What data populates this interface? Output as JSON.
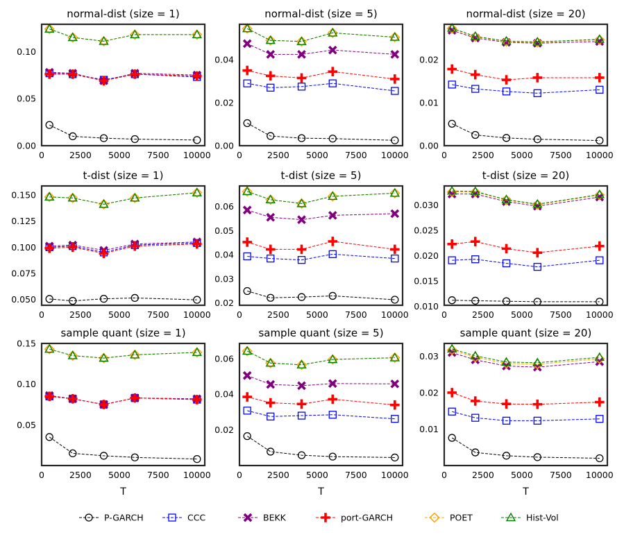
{
  "figure": {
    "xlabel": "T",
    "legend": [
      {
        "name": "P-GARCH",
        "color": "#000000",
        "marker": "circle"
      },
      {
        "name": "CCC",
        "color": "#0000ff",
        "marker": "square"
      },
      {
        "name": "BEKK",
        "color": "#800080",
        "marker": "x-cross"
      },
      {
        "name": "port-GARCH",
        "color": "#ff0000",
        "marker": "plus-cross"
      },
      {
        "name": "POET",
        "color": "#ffa500",
        "marker": "diamond"
      },
      {
        "name": "Hist-Vol",
        "color": "#008000",
        "marker": "triangle"
      }
    ]
  },
  "chart_data": [
    {
      "type": "line",
      "title": "normal-dist (size = 1)",
      "xlabel": "",
      "ylabel": "",
      "x": [
        500,
        2000,
        4000,
        6000,
        10000
      ],
      "xlim": [
        0,
        10500
      ],
      "xticks": [
        "0",
        "2500",
        "5000",
        "7500",
        "10000"
      ],
      "xtick_values": [
        0,
        2500,
        5000,
        7500,
        10000
      ],
      "ylim": [
        0,
        0.129
      ],
      "yticks": [
        "0.00",
        "0.05",
        "0.10"
      ],
      "ytick_values": [
        0,
        0.05,
        0.1
      ],
      "series": [
        {
          "name": "P-GARCH",
          "values": [
            0.022,
            0.01,
            0.008,
            0.007,
            0.006
          ]
        },
        {
          "name": "CCC",
          "values": [
            0.077,
            0.076,
            0.07,
            0.076,
            0.073
          ]
        },
        {
          "name": "BEKK",
          "values": [
            0.078,
            0.077,
            0.069,
            0.077,
            0.075
          ]
        },
        {
          "name": "port-GARCH",
          "values": [
            0.076,
            0.076,
            0.069,
            0.076,
            0.074
          ]
        },
        {
          "name": "POET",
          "values": [
            0.124,
            0.115,
            0.111,
            0.118,
            0.118
          ]
        },
        {
          "name": "Hist-Vol",
          "values": [
            0.124,
            0.115,
            0.111,
            0.118,
            0.118
          ]
        }
      ]
    },
    {
      "type": "line",
      "title": "normal-dist (size = 5)",
      "xlabel": "",
      "ylabel": "",
      "x": [
        500,
        2000,
        4000,
        6000,
        10000
      ],
      "xlim": [
        0,
        10500
      ],
      "xticks": [
        "0",
        "2500",
        "5000",
        "7500",
        "10000"
      ],
      "xtick_values": [
        0,
        2500,
        5000,
        7500,
        10000
      ],
      "ylim": [
        0,
        0.0565
      ],
      "yticks": [
        "0.00",
        "0.02",
        "0.04"
      ],
      "ytick_values": [
        0,
        0.02,
        0.04
      ],
      "series": [
        {
          "name": "P-GARCH",
          "values": [
            0.0105,
            0.0045,
            0.0035,
            0.0033,
            0.0025
          ]
        },
        {
          "name": "CCC",
          "values": [
            0.029,
            0.027,
            0.0275,
            0.029,
            0.0255
          ]
        },
        {
          "name": "BEKK",
          "values": [
            0.0475,
            0.0425,
            0.0425,
            0.0445,
            0.0425
          ]
        },
        {
          "name": "port-GARCH",
          "values": [
            0.035,
            0.0325,
            0.0315,
            0.0345,
            0.031
          ]
        },
        {
          "name": "POET",
          "values": [
            0.0545,
            0.049,
            0.0485,
            0.0525,
            0.0505
          ]
        },
        {
          "name": "Hist-Vol",
          "values": [
            0.0545,
            0.049,
            0.0485,
            0.0525,
            0.0505
          ]
        }
      ]
    },
    {
      "type": "line",
      "title": "normal-dist (size = 20)",
      "xlabel": "",
      "ylabel": "",
      "x": [
        500,
        2000,
        4000,
        6000,
        10000
      ],
      "xlim": [
        0,
        10500
      ],
      "xticks": [
        "0",
        "2500",
        "5000",
        "7500",
        "10000"
      ],
      "xtick_values": [
        0,
        2500,
        5000,
        7500,
        10000
      ],
      "ylim": [
        0,
        0.0282
      ],
      "yticks": [
        "0.00",
        "0.01",
        "0.02"
      ],
      "ytick_values": [
        0,
        0.01,
        0.02
      ],
      "series": [
        {
          "name": "P-GARCH",
          "values": [
            0.0051,
            0.0025,
            0.0018,
            0.0015,
            0.0012
          ]
        },
        {
          "name": "CCC",
          "values": [
            0.0142,
            0.0132,
            0.0126,
            0.0122,
            0.013
          ]
        },
        {
          "name": "BEKK",
          "values": [
            0.0268,
            0.025,
            0.024,
            0.0238,
            0.0242
          ]
        },
        {
          "name": "port-GARCH",
          "values": [
            0.0178,
            0.0165,
            0.0153,
            0.0158,
            0.0158
          ]
        },
        {
          "name": "POET",
          "values": [
            0.0272,
            0.0253,
            0.0242,
            0.024,
            0.0246
          ]
        },
        {
          "name": "Hist-Vol",
          "values": [
            0.0273,
            0.0254,
            0.0243,
            0.0241,
            0.0247
          ]
        }
      ]
    },
    {
      "type": "line",
      "title": "t-dist (size = 1)",
      "xlabel": "",
      "ylabel": "",
      "x": [
        500,
        2000,
        4000,
        6000,
        10000
      ],
      "xlim": [
        0,
        10500
      ],
      "xticks": [
        "0",
        "2500",
        "5000",
        "7500",
        "10000"
      ],
      "xtick_values": [
        0,
        2500,
        5000,
        7500,
        10000
      ],
      "ylim": [
        0.0445,
        0.1585
      ],
      "yticks": [
        "0.050",
        "0.075",
        "0.100",
        "0.125",
        "0.150"
      ],
      "ytick_values": [
        0.05,
        0.075,
        0.1,
        0.125,
        0.15
      ],
      "series": [
        {
          "name": "P-GARCH",
          "values": [
            0.0505,
            0.0487,
            0.0507,
            0.0515,
            0.0497
          ]
        },
        {
          "name": "CCC",
          "values": [
            0.1,
            0.101,
            0.095,
            0.102,
            0.104
          ]
        },
        {
          "name": "BEKK",
          "values": [
            0.101,
            0.102,
            0.097,
            0.103,
            0.105
          ]
        },
        {
          "name": "port-GARCH",
          "values": [
            0.099,
            0.1,
            0.094,
            0.101,
            0.103
          ]
        },
        {
          "name": "POET",
          "values": [
            0.148,
            0.147,
            0.141,
            0.147,
            0.152
          ]
        },
        {
          "name": "Hist-Vol",
          "values": [
            0.148,
            0.147,
            0.141,
            0.147,
            0.152
          ]
        }
      ]
    },
    {
      "type": "line",
      "title": "t-dist (size = 5)",
      "xlabel": "",
      "ylabel": "",
      "x": [
        500,
        2000,
        4000,
        6000,
        10000
      ],
      "xlim": [
        0,
        10500
      ],
      "xticks": [
        "0",
        "2500",
        "5000",
        "7500",
        "10000"
      ],
      "xtick_values": [
        0,
        2500,
        5000,
        7500,
        10000
      ],
      "ylim": [
        0.019,
        0.0685
      ],
      "yticks": [
        "0.02",
        "0.03",
        "0.04",
        "0.05",
        "0.06"
      ],
      "ytick_values": [
        0.02,
        0.03,
        0.04,
        0.05,
        0.06
      ],
      "series": [
        {
          "name": "P-GARCH",
          "values": [
            0.0249,
            0.0221,
            0.0224,
            0.0229,
            0.0213
          ]
        },
        {
          "name": "CCC",
          "values": [
            0.0393,
            0.0384,
            0.0378,
            0.0402,
            0.0384
          ]
        },
        {
          "name": "BEKK",
          "values": [
            0.0585,
            0.0555,
            0.0545,
            0.0563,
            0.057
          ]
        },
        {
          "name": "port-GARCH",
          "values": [
            0.0452,
            0.0422,
            0.0422,
            0.0455,
            0.0422
          ]
        },
        {
          "name": "POET",
          "values": [
            0.0662,
            0.0628,
            0.0612,
            0.0642,
            0.0655
          ]
        },
        {
          "name": "Hist-Vol",
          "values": [
            0.0662,
            0.0628,
            0.0612,
            0.0642,
            0.0655
          ]
        }
      ]
    },
    {
      "type": "line",
      "title": "t-dist (size = 20)",
      "xlabel": "",
      "ylabel": "",
      "x": [
        500,
        2000,
        4000,
        6000,
        10000
      ],
      "xlim": [
        0,
        10500
      ],
      "xticks": [
        "0",
        "2500",
        "5000",
        "7500",
        "10000"
      ],
      "xtick_values": [
        0,
        2500,
        5000,
        7500,
        10000
      ],
      "ylim": [
        0.0102,
        0.0338
      ],
      "yticks": [
        "0.010",
        "0.015",
        "0.020",
        "0.025",
        "0.030"
      ],
      "ytick_values": [
        0.01,
        0.015,
        0.02,
        0.025,
        0.03
      ],
      "series": [
        {
          "name": "P-GARCH",
          "values": [
            0.0112,
            0.0111,
            0.011,
            0.0109,
            0.0109
          ]
        },
        {
          "name": "CCC",
          "values": [
            0.0191,
            0.0193,
            0.0185,
            0.0178,
            0.0191
          ]
        },
        {
          "name": "BEKK",
          "values": [
            0.0322,
            0.0322,
            0.0307,
            0.0298,
            0.0316
          ]
        },
        {
          "name": "port-GARCH",
          "values": [
            0.0223,
            0.0228,
            0.0214,
            0.0206,
            0.0219
          ]
        },
        {
          "name": "POET",
          "values": [
            0.0326,
            0.0326,
            0.031,
            0.0301,
            0.032
          ]
        },
        {
          "name": "Hist-Vol",
          "values": [
            0.0328,
            0.0327,
            0.0311,
            0.0302,
            0.0321
          ]
        }
      ]
    },
    {
      "type": "line",
      "title": "sample quant (size = 1)",
      "xlabel": "T",
      "ylabel": "",
      "x": [
        500,
        2000,
        4000,
        6000,
        10000
      ],
      "xlim": [
        0,
        10500
      ],
      "xticks": [
        "0",
        "2500",
        "5000",
        "7500",
        "10000"
      ],
      "xtick_values": [
        0,
        2500,
        5000,
        7500,
        10000
      ],
      "ylim": [
        0,
        0.15
      ],
      "yticks": [
        "0.05",
        "0.10",
        "0.15"
      ],
      "ytick_values": [
        0.05,
        0.1,
        0.15
      ],
      "series": [
        {
          "name": "P-GARCH",
          "values": [
            0.035,
            0.015,
            0.012,
            0.01,
            0.008
          ]
        },
        {
          "name": "CCC",
          "values": [
            0.085,
            0.082,
            0.075,
            0.083,
            0.081
          ]
        },
        {
          "name": "BEKK",
          "values": [
            0.086,
            0.082,
            0.075,
            0.083,
            0.082
          ]
        },
        {
          "name": "port-GARCH",
          "values": [
            0.085,
            0.082,
            0.075,
            0.083,
            0.081
          ]
        },
        {
          "name": "POET",
          "values": [
            0.143,
            0.135,
            0.132,
            0.136,
            0.139
          ]
        },
        {
          "name": "Hist-Vol",
          "values": [
            0.143,
            0.135,
            0.132,
            0.136,
            0.139
          ]
        }
      ]
    },
    {
      "type": "line",
      "title": "sample quant (size = 5)",
      "xlabel": "T",
      "ylabel": "",
      "x": [
        500,
        2000,
        4000,
        6000,
        10000
      ],
      "xlim": [
        0,
        10500
      ],
      "xticks": [
        "0",
        "2500",
        "5000",
        "7500",
        "10000"
      ],
      "xtick_values": [
        0,
        2500,
        5000,
        7500,
        10000
      ],
      "ylim": [
        0,
        0.0685
      ],
      "yticks": [
        "0.02",
        "0.04",
        "0.06"
      ],
      "ytick_values": [
        0.02,
        0.04,
        0.06
      ],
      "series": [
        {
          "name": "P-GARCH",
          "values": [
            0.0165,
            0.0078,
            0.0058,
            0.005,
            0.0045
          ]
        },
        {
          "name": "CCC",
          "values": [
            0.0308,
            0.0275,
            0.028,
            0.0285,
            0.0262
          ]
        },
        {
          "name": "BEKK",
          "values": [
            0.0505,
            0.0455,
            0.0448,
            0.046,
            0.0458
          ]
        },
        {
          "name": "port-GARCH",
          "values": [
            0.0385,
            0.0352,
            0.0345,
            0.0372,
            0.034
          ]
        },
        {
          "name": "POET",
          "values": [
            0.0642,
            0.0575,
            0.0565,
            0.0595,
            0.0605
          ]
        },
        {
          "name": "Hist-Vol",
          "values": [
            0.0642,
            0.0575,
            0.0565,
            0.0595,
            0.0605
          ]
        }
      ]
    },
    {
      "type": "line",
      "title": "sample quant (size = 20)",
      "xlabel": "T",
      "ylabel": "",
      "x": [
        500,
        2000,
        4000,
        6000,
        10000
      ],
      "xlim": [
        0,
        10500
      ],
      "xticks": [
        "0",
        "2500",
        "5000",
        "7500",
        "10000"
      ],
      "xtick_values": [
        0,
        2500,
        5000,
        7500,
        10000
      ],
      "ylim": [
        0,
        0.0335
      ],
      "yticks": [
        "0.01",
        "0.02",
        "0.03"
      ],
      "ytick_values": [
        0.01,
        0.02,
        0.03
      ],
      "series": [
        {
          "name": "P-GARCH",
          "values": [
            0.0076,
            0.0036,
            0.0027,
            0.0023,
            0.002
          ]
        },
        {
          "name": "CCC",
          "values": [
            0.0148,
            0.0131,
            0.0123,
            0.0123,
            0.0128
          ]
        },
        {
          "name": "BEKK",
          "values": [
            0.031,
            0.029,
            0.0273,
            0.027,
            0.0285
          ]
        },
        {
          "name": "port-GARCH",
          "values": [
            0.02,
            0.0177,
            0.0169,
            0.0168,
            0.0174
          ]
        },
        {
          "name": "POET",
          "values": [
            0.0317,
            0.0297,
            0.028,
            0.0278,
            0.0293
          ]
        },
        {
          "name": "Hist-Vol",
          "values": [
            0.032,
            0.0301,
            0.0284,
            0.0282,
            0.0297
          ]
        }
      ]
    }
  ]
}
